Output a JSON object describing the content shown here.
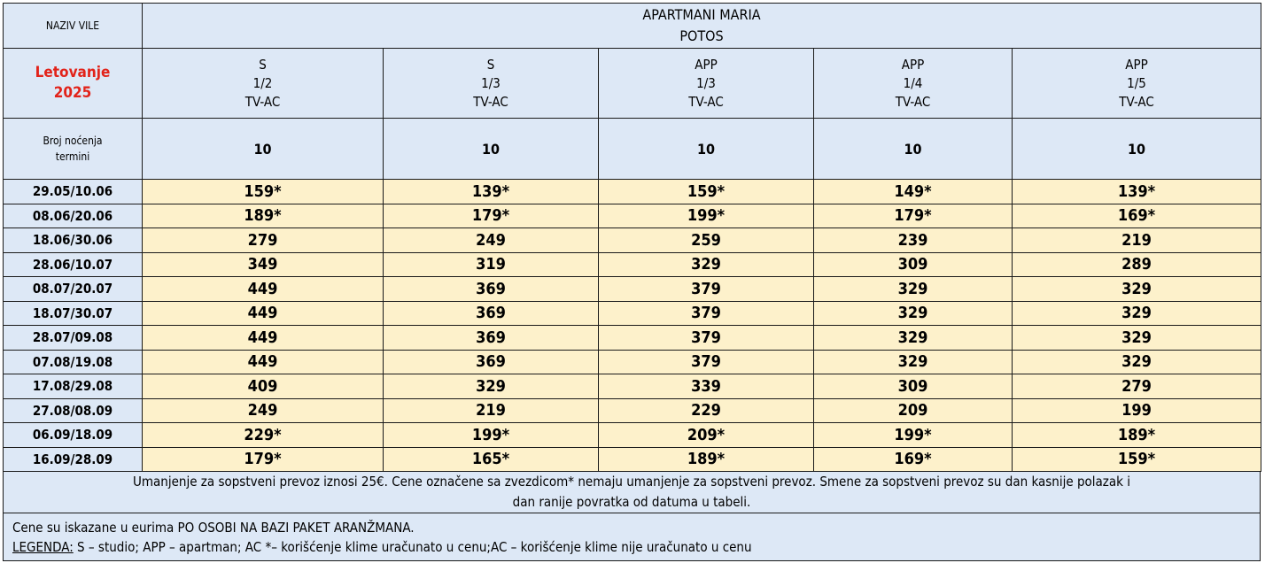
{
  "header": {
    "naziv_vile": "NAZIV VILE",
    "title_line1": "APARTMANI MARIA",
    "title_line2": "POTOS",
    "season_line1": "Letovanje",
    "season_line2": "2025"
  },
  "columns": [
    {
      "type": "S",
      "rooms": "1/2",
      "features": "TV-AC",
      "nights": "10"
    },
    {
      "type": "S",
      "rooms": "1/3",
      "features": "TV-AC",
      "nights": "10"
    },
    {
      "type": "APP",
      "rooms": "1/3",
      "features": "TV-AC",
      "nights": "10"
    },
    {
      "type": "APP",
      "rooms": "1/4",
      "features": "TV-AC",
      "nights": "10"
    },
    {
      "type": "APP",
      "rooms": "1/5",
      "features": "TV-AC",
      "nights": "10"
    }
  ],
  "nights_label_line1": "Broj noćenja",
  "nights_label_line2": "termini",
  "rows": [
    {
      "date": "29.05/10.06",
      "prices": [
        "159*",
        "139*",
        "159*",
        "149*",
        "139*"
      ]
    },
    {
      "date": "08.06/20.06",
      "prices": [
        "189*",
        "179*",
        "199*",
        "179*",
        "169*"
      ]
    },
    {
      "date": "18.06/30.06",
      "prices": [
        "279",
        "249",
        "259",
        "239",
        "219"
      ]
    },
    {
      "date": "28.06/10.07",
      "prices": [
        "349",
        "319",
        "329",
        "309",
        "289"
      ]
    },
    {
      "date": "08.07/20.07",
      "prices": [
        "449",
        "369",
        "379",
        "329",
        "329"
      ]
    },
    {
      "date": "18.07/30.07",
      "prices": [
        "449",
        "369",
        "379",
        "329",
        "329"
      ]
    },
    {
      "date": "28.07/09.08",
      "prices": [
        "449",
        "369",
        "379",
        "329",
        "329"
      ]
    },
    {
      "date": "07.08/19.08",
      "prices": [
        "449",
        "369",
        "379",
        "329",
        "329"
      ]
    },
    {
      "date": "17.08/29.08",
      "prices": [
        "409",
        "329",
        "339",
        "309",
        "279"
      ]
    },
    {
      "date": "27.08/08.09",
      "prices": [
        "249",
        "219",
        "229",
        "209",
        "199"
      ]
    },
    {
      "date": "06.09/18.09",
      "prices": [
        "229*",
        "199*",
        "209*",
        "199*",
        "189*"
      ]
    },
    {
      "date": "16.09/28.09",
      "prices": [
        "179*",
        "165*",
        "189*",
        "169*",
        "159*"
      ]
    }
  ],
  "notes": {
    "transport_line1": "Umanjenje za sopstveni prevoz iznosi 25€. Cene označene sa zvezdicom* nemaju umanjenje za sopstveni prevoz. Smene za sopstveni prevoz su dan kasnije polazak  i",
    "transport_line2": "dan ranije povratka od datuma u tabeli.",
    "currency": "Cene su iskazane u eurima PO OSOBI NA BAZI PAKET ARANŽMANA.",
    "legend_label": "LEGENDA:",
    "legend_text": " S – studio; APP – apartman;   AC *– korišćenje klime uračunato u cenu;AC – korišćenje klime nije uračunato u cenu"
  },
  "colors": {
    "header_bg": "#dde8f6",
    "price_bg": "#fdf1cb",
    "season_red": "#e2231a"
  }
}
